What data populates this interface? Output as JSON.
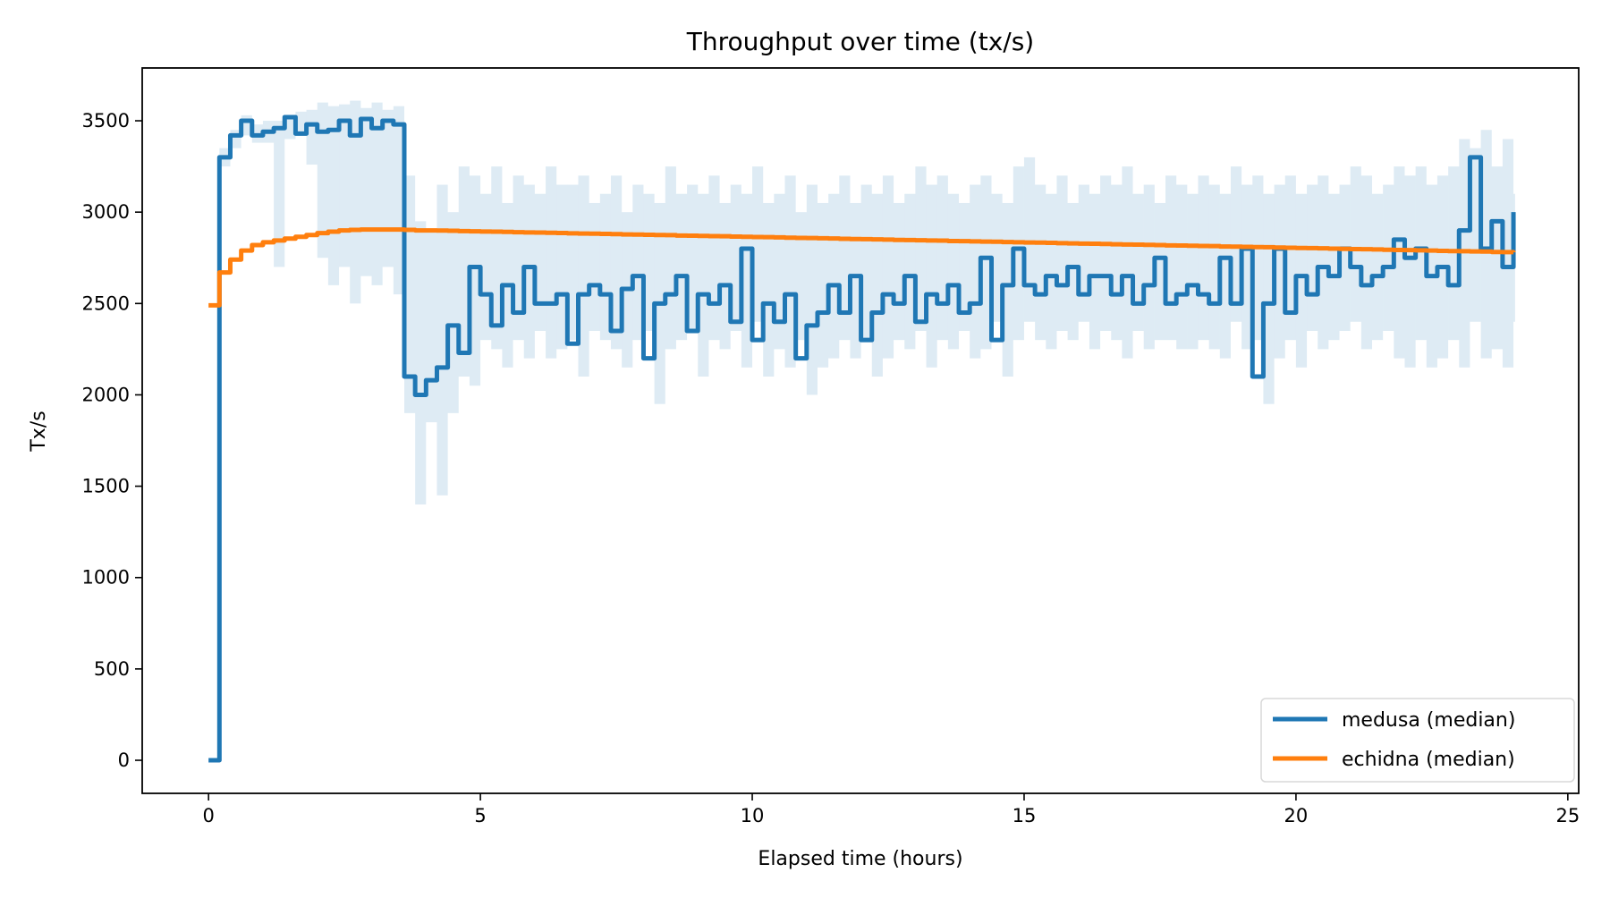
{
  "chart_data": {
    "type": "line",
    "title": "Throughput over time (tx/s)",
    "xlabel": "Elapsed time (hours)",
    "ylabel": "Tx/s",
    "xlim": [
      -1.22,
      25.2
    ],
    "ylim": [
      -181,
      3789
    ],
    "xticks": [
      0,
      5,
      10,
      15,
      20,
      25
    ],
    "yticks": [
      0,
      500,
      1000,
      1500,
      2000,
      2500,
      3000,
      3500
    ],
    "grid": false,
    "legend_position": "bottom-right",
    "x": [
      0,
      0.2,
      0.4,
      0.6,
      0.8,
      1,
      1.2,
      1.4,
      1.6,
      1.8,
      2,
      2.2,
      2.4,
      2.6,
      2.8,
      3,
      3.2,
      3.4,
      3.6,
      3.8,
      4,
      4.2,
      4.4,
      4.6,
      4.8,
      5,
      5.2,
      5.4,
      5.6,
      5.8,
      6,
      6.2,
      6.4,
      6.6,
      6.8,
      7,
      7.2,
      7.4,
      7.6,
      7.8,
      8,
      8.2,
      8.4,
      8.6,
      8.8,
      9,
      9.2,
      9.4,
      9.6,
      9.8,
      10,
      10.2,
      10.4,
      10.6,
      10.8,
      11,
      11.2,
      11.4,
      11.6,
      11.8,
      12,
      12.2,
      12.4,
      12.6,
      12.8,
      13,
      13.2,
      13.4,
      13.6,
      13.8,
      14,
      14.2,
      14.4,
      14.6,
      14.8,
      15,
      15.2,
      15.4,
      15.6,
      15.8,
      16,
      16.2,
      16.4,
      16.6,
      16.8,
      17,
      17.2,
      17.4,
      17.6,
      17.8,
      18,
      18.2,
      18.4,
      18.6,
      18.8,
      19,
      19.2,
      19.4,
      19.6,
      19.8,
      20,
      20.2,
      20.4,
      20.6,
      20.8,
      21,
      21.2,
      21.4,
      21.6,
      21.8,
      22,
      22.2,
      22.4,
      22.6,
      22.8,
      23,
      23.2,
      23.4,
      23.6,
      23.8,
      24
    ],
    "series": [
      {
        "name": "medusa (median)",
        "color": "#1f77b4",
        "step": "post",
        "values": [
          0,
          3300,
          3420,
          3500,
          3420,
          3440,
          3460,
          3520,
          3430,
          3480,
          3440,
          3450,
          3500,
          3420,
          3510,
          3460,
          3500,
          3480,
          2100,
          2000,
          2080,
          2150,
          2380,
          2230,
          2700,
          2550,
          2380,
          2600,
          2450,
          2700,
          2500,
          2500,
          2550,
          2280,
          2550,
          2600,
          2550,
          2350,
          2580,
          2650,
          2200,
          2500,
          2550,
          2650,
          2350,
          2550,
          2500,
          2600,
          2400,
          2800,
          2300,
          2500,
          2400,
          2550,
          2200,
          2380,
          2450,
          2600,
          2450,
          2650,
          2300,
          2450,
          2550,
          2500,
          2650,
          2400,
          2550,
          2500,
          2600,
          2450,
          2500,
          2750,
          2300,
          2600,
          2800,
          2600,
          2550,
          2650,
          2600,
          2700,
          2550,
          2650,
          2650,
          2550,
          2650,
          2500,
          2600,
          2750,
          2500,
          2550,
          2600,
          2550,
          2500,
          2750,
          2500,
          2800,
          2100,
          2500,
          2800,
          2450,
          2650,
          2550,
          2700,
          2650,
          2800,
          2700,
          2600,
          2650,
          2700,
          2850,
          2750,
          2800,
          2650,
          2700,
          2600,
          2900,
          3300,
          2800,
          2950,
          2700,
          3000
        ],
        "band_color": "#1f77b4",
        "band_lower": [
          0,
          3250,
          3350,
          3420,
          3380,
          3380,
          2700,
          3400,
          3420,
          3260,
          2750,
          2600,
          2700,
          2500,
          2650,
          2600,
          2700,
          2550,
          1900,
          1400,
          1850,
          1450,
          1900,
          2100,
          2050,
          2300,
          2250,
          2150,
          2300,
          2200,
          2350,
          2200,
          2250,
          2300,
          2100,
          2350,
          2300,
          2250,
          2150,
          2300,
          2350,
          1950,
          2250,
          2300,
          2350,
          2100,
          2300,
          2250,
          2350,
          2150,
          2400,
          2100,
          2250,
          2150,
          2300,
          2000,
          2150,
          2200,
          2300,
          2200,
          2300,
          2100,
          2200,
          2300,
          2250,
          2350,
          2150,
          2300,
          2250,
          2350,
          2200,
          2250,
          2400,
          2100,
          2300,
          2400,
          2300,
          2250,
          2350,
          2300,
          2400,
          2250,
          2350,
          2300,
          2200,
          2350,
          2250,
          2300,
          2300,
          2250,
          2250,
          2300,
          2250,
          2200,
          2400,
          2250,
          2300,
          1950,
          2200,
          2300,
          2150,
          2350,
          2250,
          2300,
          2350,
          2400,
          2250,
          2300,
          2350,
          2200,
          2150,
          2300,
          2150,
          2200,
          2300,
          2150,
          2400,
          2200,
          2250,
          2150,
          2400
        ],
        "band_upper": [
          0,
          3350,
          3450,
          3530,
          3480,
          3500,
          3500,
          3520,
          3550,
          3560,
          3600,
          3580,
          3590,
          3610,
          3570,
          3600,
          3560,
          3580,
          3200,
          2950,
          2900,
          3150,
          3000,
          3250,
          3200,
          3100,
          3250,
          3050,
          3200,
          3150,
          3100,
          3250,
          3150,
          3150,
          3200,
          3050,
          3100,
          3200,
          3000,
          3150,
          3100,
          3050,
          3250,
          3100,
          3150,
          3100,
          3200,
          3050,
          3150,
          3100,
          3250,
          3050,
          3100,
          3200,
          3000,
          3150,
          3050,
          3100,
          3200,
          3050,
          3150,
          3100,
          3200,
          3050,
          3100,
          3250,
          3150,
          3200,
          3100,
          3050,
          3150,
          3200,
          3100,
          3050,
          3250,
          3300,
          3150,
          3100,
          3200,
          3050,
          3150,
          3100,
          3200,
          3150,
          3250,
          3100,
          3150,
          3050,
          3200,
          3150,
          3100,
          3200,
          3150,
          3100,
          3250,
          3150,
          3200,
          3100,
          3150,
          3200,
          3100,
          3150,
          3200,
          3100,
          3150,
          3250,
          3200,
          3100,
          3150,
          3250,
          3200,
          3250,
          3150,
          3200,
          3250,
          3400,
          3350,
          3450,
          3250,
          3400,
          3100
        ]
      },
      {
        "name": "echidna (median)",
        "color": "#ff7f0e",
        "step": "post",
        "values": [
          2490,
          2670,
          2740,
          2790,
          2820,
          2835,
          2845,
          2855,
          2865,
          2875,
          2885,
          2893,
          2900,
          2903,
          2905,
          2905,
          2905,
          2905,
          2903,
          2900,
          2900,
          2899,
          2898,
          2896,
          2895,
          2894,
          2893,
          2892,
          2890,
          2889,
          2888,
          2887,
          2886,
          2884,
          2883,
          2882,
          2881,
          2880,
          2878,
          2877,
          2876,
          2875,
          2874,
          2872,
          2871,
          2870,
          2869,
          2868,
          2866,
          2865,
          2864,
          2863,
          2862,
          2860,
          2859,
          2858,
          2857,
          2856,
          2854,
          2853,
          2852,
          2851,
          2850,
          2848,
          2847,
          2846,
          2845,
          2844,
          2842,
          2841,
          2840,
          2839,
          2838,
          2836,
          2835,
          2834,
          2833,
          2832,
          2830,
          2829,
          2828,
          2827,
          2826,
          2824,
          2823,
          2822,
          2821,
          2820,
          2818,
          2817,
          2816,
          2815,
          2814,
          2812,
          2811,
          2810,
          2809,
          2808,
          2806,
          2805,
          2804,
          2803,
          2802,
          2800,
          2799,
          2798,
          2797,
          2796,
          2794,
          2793,
          2792,
          2791,
          2790,
          2788,
          2787,
          2786,
          2785,
          2784,
          2782,
          2781,
          2780
        ]
      }
    ]
  }
}
